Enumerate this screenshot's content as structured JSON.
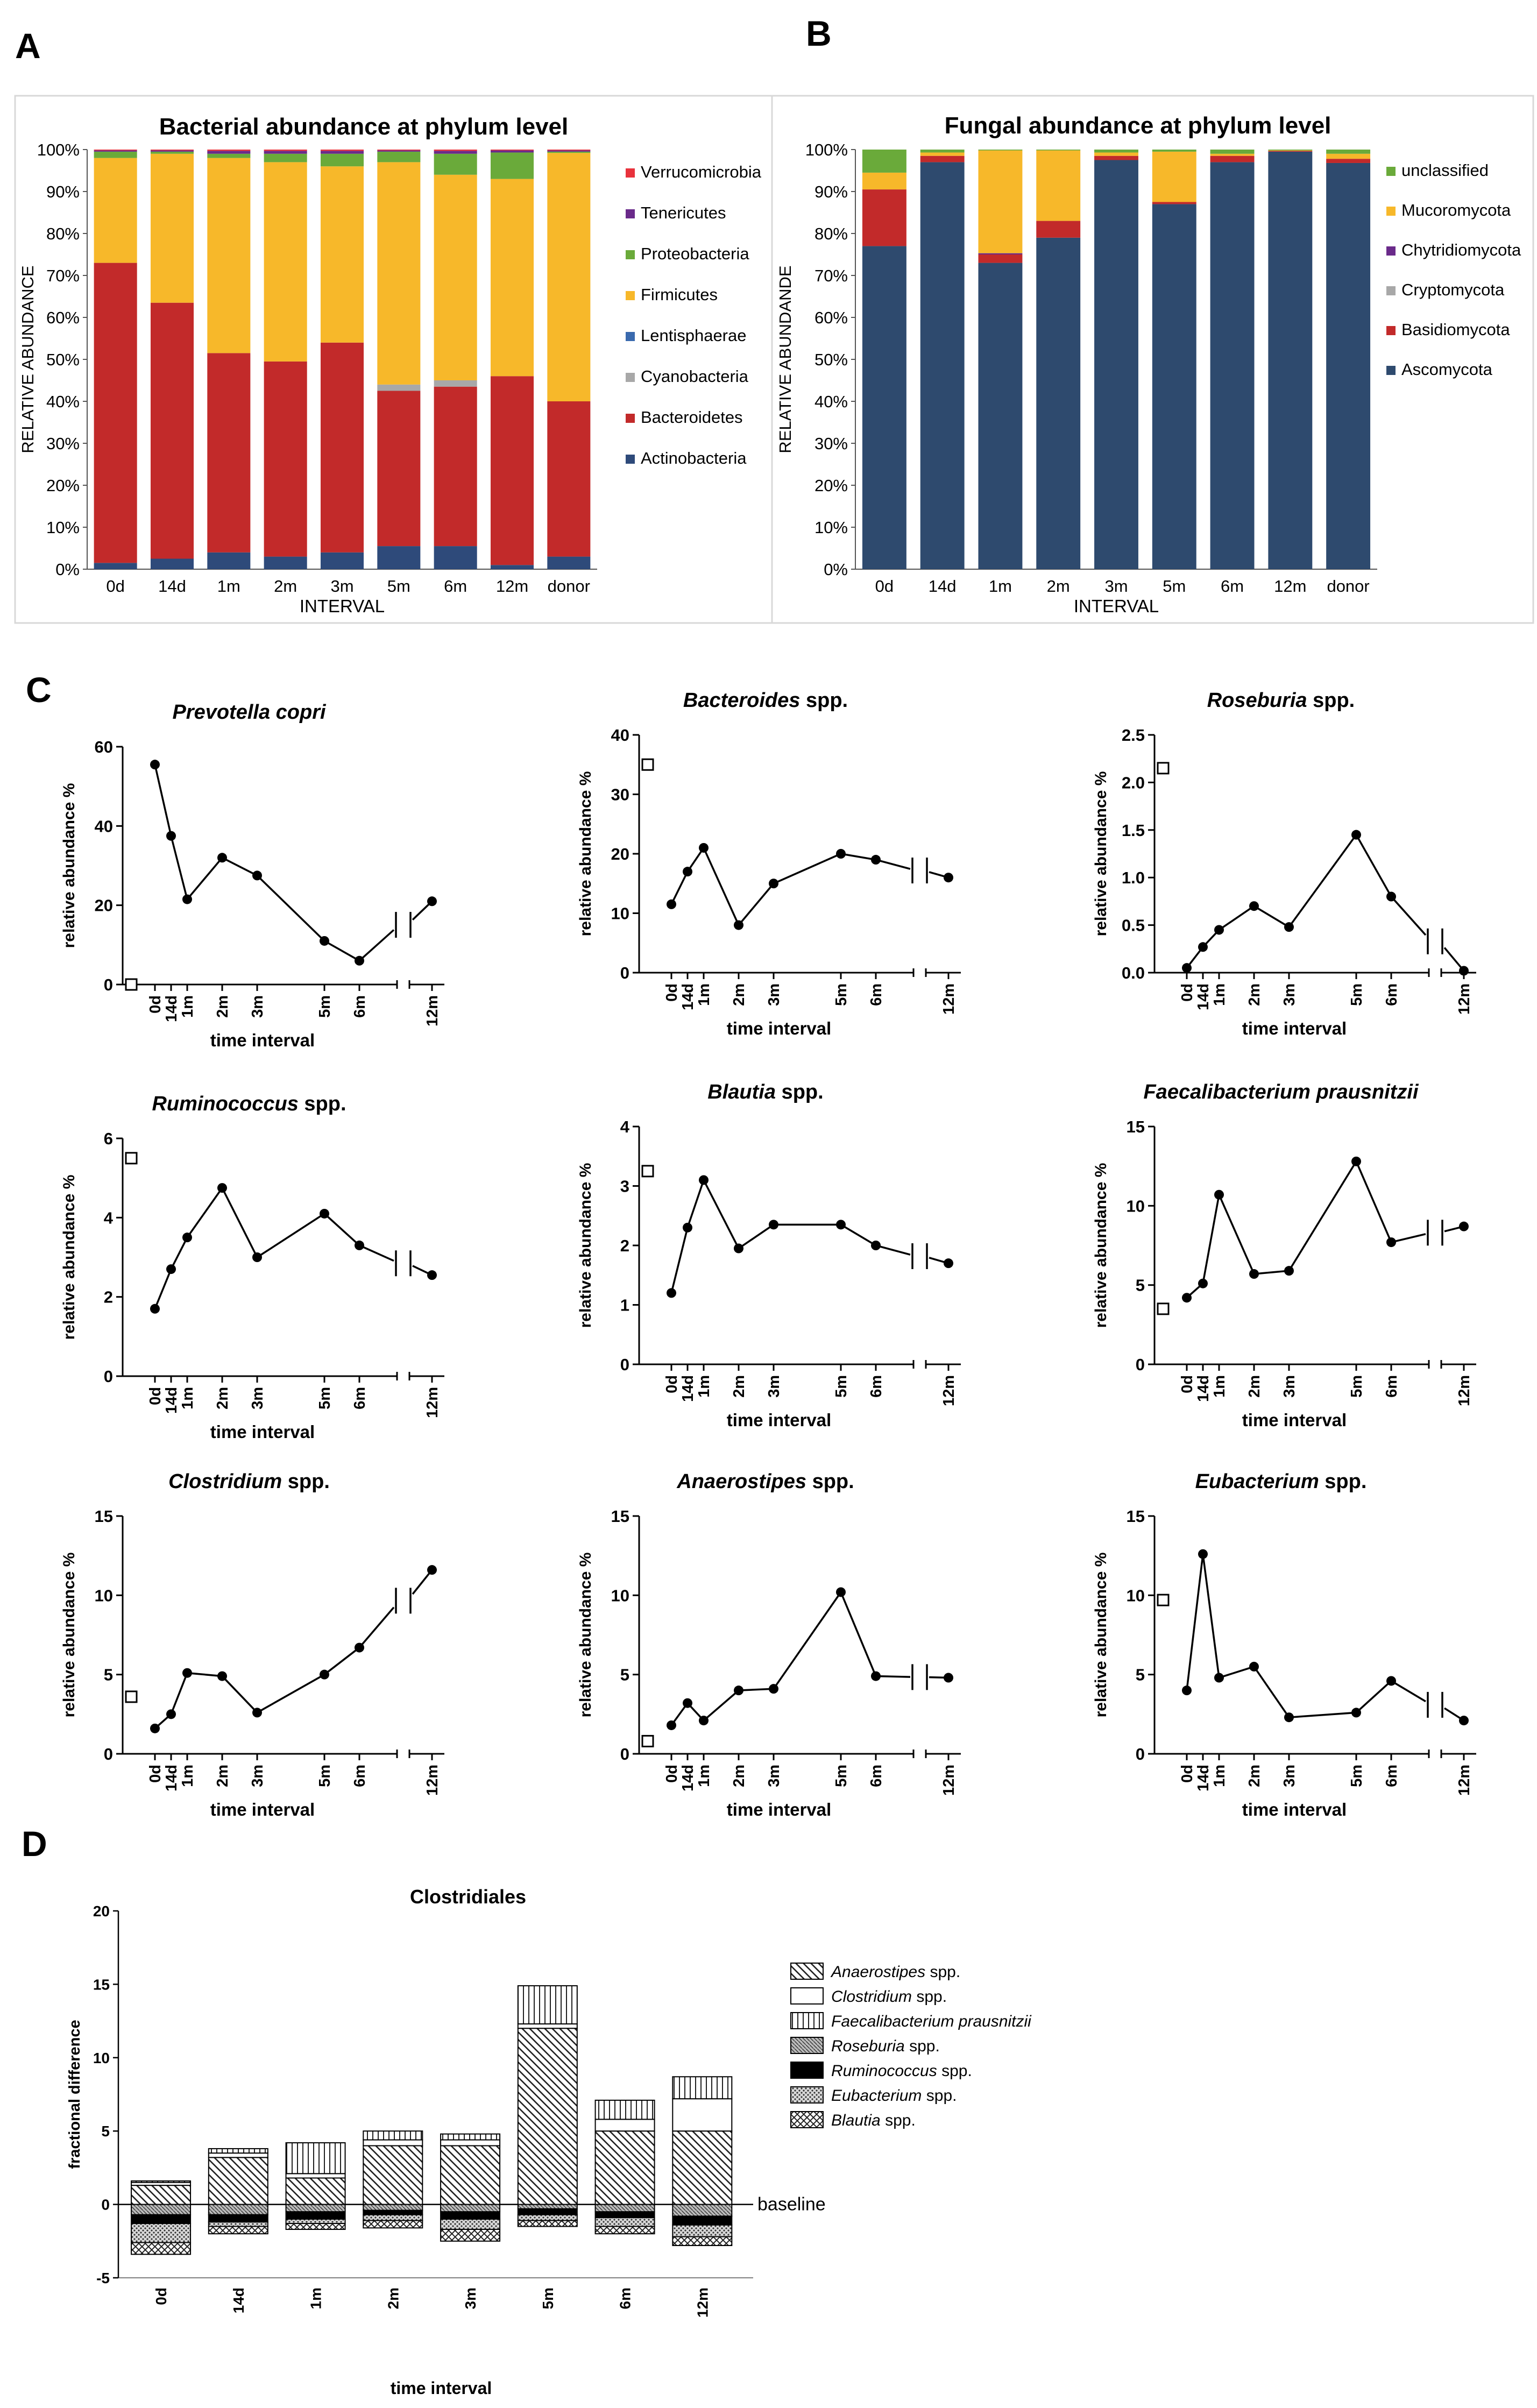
{
  "panel_letters": {
    "a": "A",
    "b": "B",
    "c": "C",
    "d": "D"
  },
  "colors": {
    "Verrucomicrobia": "#e8323c",
    "Tenericutes": "#6a2a8a",
    "Proteobacteria": "#6aaa3a",
    "Lentisphaerae": "#3a6aae",
    "Firmicutes": "#f7b82a",
    "Cyanobacteria": "#a8a8a8",
    "Bacteroidetes": "#c22a2a",
    "Actinobacteria": "#2e4a7a",
    "unclassified": "#6aaa3a",
    "Mucoromycota": "#f7b82a",
    "Chytridiomycota": "#6a2a8a",
    "Cryptomycota": "#a8a8a8",
    "Basidiomycota": "#c22a2a",
    "Ascomycota": "#2e4a6e"
  },
  "chart_data": [
    {
      "id": "A",
      "type": "bar",
      "stacked": true,
      "title": "Bacterial abundance at phylum level",
      "xlabel": "INTERVAL",
      "ylabel": "RELATIVE ABUNDANCE",
      "yticks": [
        "0%",
        "10%",
        "20%",
        "30%",
        "40%",
        "50%",
        "60%",
        "70%",
        "80%",
        "90%",
        "100%"
      ],
      "ylim": [
        0,
        100
      ],
      "legend": "right",
      "categories": [
        "0d",
        "14d",
        "1m",
        "2m",
        "3m",
        "5m",
        "6m",
        "12m",
        "donor"
      ],
      "series": [
        {
          "name": "Actinobacteria",
          "values": [
            1.5,
            2.5,
            4,
            3,
            4,
            5.5,
            5.5,
            1,
            3
          ]
        },
        {
          "name": "Bacteroidetes",
          "values": [
            71.5,
            61,
            47.5,
            46.5,
            50,
            37,
            38,
            45,
            37
          ]
        },
        {
          "name": "Cyanobacteria",
          "values": [
            0,
            0,
            0,
            0,
            0,
            1.5,
            1.5,
            0,
            0
          ]
        },
        {
          "name": "Lentisphaerae",
          "values": [
            0,
            0,
            0,
            0,
            0,
            0,
            0,
            0,
            0
          ]
        },
        {
          "name": "Firmicutes",
          "values": [
            25,
            35.5,
            46.5,
            47.5,
            42,
            53,
            49,
            47,
            59.2
          ]
        },
        {
          "name": "Proteobacteria",
          "values": [
            1.5,
            0.5,
            1,
            2,
            3,
            2.5,
            5,
            6.3,
            0.3
          ]
        },
        {
          "name": "Tenericutes",
          "values": [
            0.3,
            0.3,
            0.7,
            0.7,
            0.7,
            0.3,
            0.7,
            0.5,
            0.3
          ]
        },
        {
          "name": "Verrucomicrobia",
          "values": [
            0.2,
            0.2,
            0.3,
            0.3,
            0.3,
            0.2,
            0.3,
            0.2,
            0.2
          ]
        }
      ]
    },
    {
      "id": "B",
      "type": "bar",
      "stacked": true,
      "title": "Fungal abundance at phylum level",
      "xlabel": "INTERVAL",
      "ylabel": "RELATIVE ABUNDANDE",
      "yticks": [
        "0%",
        "10%",
        "20%",
        "30%",
        "40%",
        "50%",
        "60%",
        "70%",
        "80%",
        "90%",
        "100%"
      ],
      "ylim": [
        0,
        100
      ],
      "legend": "right",
      "categories": [
        "0d",
        "14d",
        "1m",
        "2m",
        "3m",
        "5m",
        "6m",
        "12m",
        "donor"
      ],
      "series": [
        {
          "name": "Ascomycota",
          "values": [
            77,
            97,
            73,
            79,
            97.5,
            87,
            97,
            99.5,
            96.8
          ]
        },
        {
          "name": "Basidiomycota",
          "values": [
            13.5,
            1.5,
            2,
            4,
            1,
            0.5,
            1.5,
            0.2,
            1
          ]
        },
        {
          "name": "Cryptomycota",
          "values": [
            0,
            0,
            0,
            0,
            0,
            0,
            0,
            0,
            0
          ]
        },
        {
          "name": "Chytridiomycota",
          "values": [
            0,
            0,
            0.3,
            0,
            0,
            0,
            0,
            0,
            0
          ]
        },
        {
          "name": "Mucoromycota",
          "values": [
            4,
            0.8,
            24.5,
            16.8,
            0.8,
            12,
            0.5,
            0.1,
            1.2
          ]
        },
        {
          "name": "unclassified",
          "values": [
            5.5,
            0.7,
            0.2,
            0.2,
            0.7,
            0.5,
            1,
            0.2,
            1
          ]
        }
      ]
    },
    {
      "id": "C1",
      "type": "line",
      "title_italic": "Prevotella copri",
      "title_rest": "",
      "xlabel": "time interval",
      "ylabel": "relative abundance %",
      "ylim": [
        0,
        60
      ],
      "yticks": [
        "0",
        "20",
        "40",
        "60"
      ],
      "x": [
        "0d",
        "14d",
        "1m",
        "2m",
        "3m",
        "5m",
        "6m",
        "12m"
      ],
      "values": [
        55.5,
        37.5,
        21.5,
        32,
        27.5,
        11,
        6,
        21
      ],
      "donor": 0
    },
    {
      "id": "C2",
      "type": "line",
      "title_italic": "Bacteroides",
      "title_rest": " spp.",
      "xlabel": "time interval",
      "ylabel": "relative abundance %",
      "ylim": [
        0,
        40
      ],
      "yticks": [
        "0",
        "10",
        "20",
        "30",
        "40"
      ],
      "x": [
        "0d",
        "14d",
        "1m",
        "2m",
        "3m",
        "5m",
        "6m",
        "12m"
      ],
      "values": [
        11.5,
        17,
        21,
        8,
        15,
        20,
        19,
        16
      ],
      "donor": 35
    },
    {
      "id": "C3",
      "type": "line",
      "title_italic": "Roseburia",
      "title_rest": " spp.",
      "xlabel": "time interval",
      "ylabel": "relative abundance %",
      "ylim": [
        0,
        2.5
      ],
      "yticks": [
        "0.0",
        "0.5",
        "1.0",
        "1.5",
        "2.0",
        "2.5"
      ],
      "x": [
        "0d",
        "14d",
        "1m",
        "2m",
        "3m",
        "5m",
        "6m",
        "12m"
      ],
      "values": [
        0.05,
        0.27,
        0.45,
        0.7,
        0.48,
        1.45,
        0.8,
        0.02
      ],
      "donor": 2.15
    },
    {
      "id": "C4",
      "type": "line",
      "title_italic": "Ruminococcus",
      "title_rest": " spp.",
      "xlabel": "time interval",
      "ylabel": "relative abundance %",
      "ylim": [
        0,
        6
      ],
      "yticks": [
        "0",
        "2",
        "4",
        "6"
      ],
      "x": [
        "0d",
        "14d",
        "1m",
        "2m",
        "3m",
        "5m",
        "6m",
        "12m"
      ],
      "values": [
        1.7,
        2.7,
        3.5,
        4.75,
        3,
        4.1,
        3.3,
        2.55
      ],
      "donor": 5.5
    },
    {
      "id": "C5",
      "type": "line",
      "title_italic": "Blautia",
      "title_rest": " spp.",
      "xlabel": "time interval",
      "ylabel": "relative abundance %",
      "ylim": [
        0,
        4
      ],
      "yticks": [
        "0",
        "1",
        "2",
        "3",
        "4"
      ],
      "x": [
        "0d",
        "14d",
        "1m",
        "2m",
        "3m",
        "5m",
        "6m",
        "12m"
      ],
      "values": [
        1.2,
        2.3,
        3.1,
        1.95,
        2.35,
        2.35,
        2,
        1.7
      ],
      "donor": 3.25
    },
    {
      "id": "C6",
      "type": "line",
      "title_italic": "Faecalibacterium prausnitzii",
      "title_rest": "",
      "xlabel": "time interval",
      "ylabel": "relative abundance %",
      "ylim": [
        0,
        15
      ],
      "yticks": [
        "0",
        "5",
        "10",
        "15"
      ],
      "x": [
        "0d",
        "14d",
        "1m",
        "2m",
        "3m",
        "5m",
        "6m",
        "12m"
      ],
      "values": [
        4.2,
        5.1,
        10.7,
        5.7,
        5.9,
        12.8,
        7.7,
        8.7
      ],
      "donor": 3.5
    },
    {
      "id": "C7",
      "type": "line",
      "title_italic": "Clostridium",
      "title_rest": " spp.",
      "xlabel": "time interval",
      "ylabel": "relative abundance %",
      "ylim": [
        0,
        15
      ],
      "yticks": [
        "0",
        "5",
        "10",
        "15"
      ],
      "x": [
        "0d",
        "14d",
        "1m",
        "2m",
        "3m",
        "5m",
        "6m",
        "12m"
      ],
      "values": [
        1.6,
        2.5,
        5.1,
        4.9,
        2.6,
        5,
        6.7,
        11.6
      ],
      "donor": 3.6
    },
    {
      "id": "C8",
      "type": "line",
      "title_italic": "Anaerostipes",
      "title_rest": " spp.",
      "xlabel": "time interval",
      "ylabel": "relative abundance %",
      "ylim": [
        0,
        15
      ],
      "yticks": [
        "0",
        "5",
        "10",
        "15"
      ],
      "x": [
        "0d",
        "14d",
        "1m",
        "2m",
        "3m",
        "5m",
        "6m",
        "12m"
      ],
      "values": [
        1.8,
        3.2,
        2.1,
        4,
        4.1,
        10.2,
        4.9,
        4.8
      ],
      "donor": 0.8
    },
    {
      "id": "C9",
      "type": "line",
      "title_italic": "Eubacterium",
      "title_rest": " spp.",
      "xlabel": "time interval",
      "ylabel": "relative abundance %",
      "ylim": [
        0,
        15
      ],
      "yticks": [
        "0",
        "5",
        "10",
        "15"
      ],
      "x": [
        "0d",
        "14d",
        "1m",
        "2m",
        "3m",
        "5m",
        "6m",
        "12m"
      ],
      "values": [
        4,
        12.6,
        4.8,
        5.5,
        2.3,
        2.6,
        4.6,
        2.1
      ],
      "donor": 9.7
    },
    {
      "id": "D",
      "type": "bar",
      "stacked": true,
      "title": "Clostridiales",
      "xlabel": "time interval",
      "ylabel": "fractional difference",
      "ylim": [
        -5,
        20
      ],
      "yticks": [
        "-5",
        "0",
        "5",
        "10",
        "15",
        "20"
      ],
      "baseline_label": "baseline",
      "legend": "right",
      "categories": [
        "0d",
        "14d",
        "1m",
        "2m",
        "3m",
        "5m",
        "6m",
        "12m"
      ],
      "series": [
        {
          "name_italic": "Anaerostipes",
          "name_rest": " spp.",
          "pattern": "diag",
          "values": [
            1.3,
            3.2,
            1.8,
            4.0,
            4.0,
            12.0,
            5.0,
            5.0
          ]
        },
        {
          "name_italic": "Clostridium",
          "name_rest": " spp.",
          "pattern": "white",
          "values": [
            0.2,
            0.3,
            0.3,
            0.4,
            0.4,
            0.3,
            0.8,
            2.2
          ]
        },
        {
          "name_italic": "Faecalibacterium prausnitzii",
          "name_rest": "",
          "pattern": "vertical",
          "values": [
            0.1,
            0.3,
            2.1,
            0.6,
            0.4,
            2.6,
            1.3,
            1.5
          ]
        },
        {
          "name_italic": "Roseburia",
          "name_rest": " spp.",
          "pattern": "fine",
          "values": [
            -0.7,
            -0.7,
            -0.5,
            -0.4,
            -0.5,
            -0.3,
            -0.5,
            -0.8
          ]
        },
        {
          "name_italic": "Ruminococcus",
          "name_rest": " spp.",
          "pattern": "black",
          "values": [
            -0.6,
            -0.5,
            -0.5,
            -0.3,
            -0.5,
            -0.4,
            -0.4,
            -0.6
          ]
        },
        {
          "name_italic": "Eubacterium",
          "name_rest": " spp.",
          "pattern": "dots",
          "values": [
            -1.3,
            -0.3,
            -0.3,
            -0.4,
            -0.7,
            -0.4,
            -0.6,
            -0.8
          ]
        },
        {
          "name_italic": "Blautia",
          "name_rest": " spp.",
          "pattern": "cross",
          "values": [
            -0.8,
            -0.5,
            -0.4,
            -0.5,
            -0.8,
            -0.4,
            -0.5,
            -0.6
          ]
        }
      ]
    }
  ]
}
